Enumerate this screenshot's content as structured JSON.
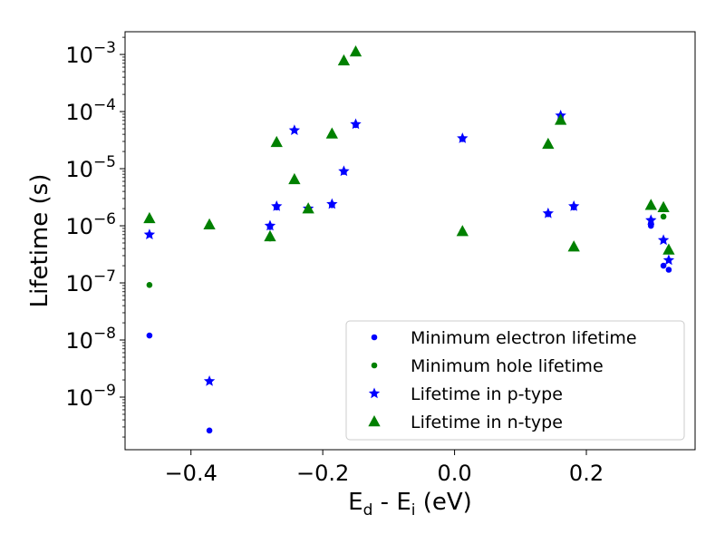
{
  "chart_data": {
    "type": "scatter",
    "title": "",
    "xlabel": {
      "main": "E",
      "sub1": "d",
      "mid": " - E",
      "sub2": "i",
      "tail": " (eV)"
    },
    "ylabel": "Lifetime (s)",
    "yscale": "log",
    "xlim": [
      -0.5,
      0.365
    ],
    "ylim": [
      1.2e-10,
      0.0025
    ],
    "xticks": [
      {
        "value": -0.4,
        "label": "−0.4"
      },
      {
        "value": -0.2,
        "label": "−0.2"
      },
      {
        "value": 0.0,
        "label": "0.0"
      },
      {
        "value": 0.2,
        "label": "0.2"
      }
    ],
    "yticks": [
      {
        "exp": -9,
        "base": "10",
        "sup": "−9"
      },
      {
        "exp": -8,
        "base": "10",
        "sup": "−8"
      },
      {
        "exp": -7,
        "base": "10",
        "sup": "−7"
      },
      {
        "exp": -6,
        "base": "10",
        "sup": "−6"
      },
      {
        "exp": -5,
        "base": "10",
        "sup": "−5"
      },
      {
        "exp": -4,
        "base": "10",
        "sup": "−4"
      },
      {
        "exp": -3,
        "base": "10",
        "sup": "−3"
      }
    ],
    "grid": false,
    "legend_position": "lower-right",
    "series": [
      {
        "name": "Minimum electron lifetime",
        "marker": "circle",
        "color": "#0000ff",
        "points": [
          [
            -0.463,
            1.2e-08
          ],
          [
            -0.372,
            2.6e-10
          ],
          [
            -0.28,
            9.5e-07
          ],
          [
            -0.27,
            2.1e-06
          ],
          [
            -0.243,
            6.2e-06
          ],
          [
            -0.222,
            1.9e-06
          ],
          [
            -0.186,
            2.3e-06
          ],
          [
            -0.168,
            8.8e-06
          ],
          [
            -0.15,
            5.8e-05
          ],
          [
            0.012,
            3.3e-05
          ],
          [
            0.142,
            1.6e-06
          ],
          [
            0.161,
            8.2e-05
          ],
          [
            0.181,
            2.1e-06
          ],
          [
            0.298,
            1e-06
          ],
          [
            0.317,
            2e-07
          ],
          [
            0.325,
            1.7e-07
          ]
        ]
      },
      {
        "name": "Minimum hole lifetime",
        "marker": "circle",
        "color": "#008000",
        "points": [
          [
            -0.463,
            9.2e-08
          ],
          [
            -0.372,
            1.05e-06
          ],
          [
            -0.28,
            6e-07
          ],
          [
            -0.27,
            2.9e-05
          ],
          [
            -0.243,
            6.2e-06
          ],
          [
            -0.222,
            1.9e-06
          ],
          [
            -0.186,
            4e-05
          ],
          [
            -0.168,
            0.00075
          ],
          [
            -0.15,
            0.0011
          ],
          [
            0.012,
            8e-07
          ],
          [
            0.142,
            2.7e-05
          ],
          [
            0.161,
            7e-05
          ],
          [
            0.181,
            4.2e-07
          ],
          [
            0.298,
            2.2e-06
          ],
          [
            0.317,
            1.45e-06
          ],
          [
            0.325,
            3.6e-07
          ]
        ]
      },
      {
        "name": "Lifetime in p-type",
        "marker": "star",
        "color": "#0000ff",
        "points": [
          [
            -0.463,
            7e-07
          ],
          [
            -0.372,
            1.9e-09
          ],
          [
            -0.28,
            1e-06
          ],
          [
            -0.27,
            2.2e-06
          ],
          [
            -0.243,
            4.7e-05
          ],
          [
            -0.222,
            2e-06
          ],
          [
            -0.186,
            2.4e-06
          ],
          [
            -0.168,
            9e-06
          ],
          [
            -0.15,
            6e-05
          ],
          [
            0.012,
            3.4e-05
          ],
          [
            0.142,
            1.65e-06
          ],
          [
            0.161,
            8.5e-05
          ],
          [
            0.181,
            2.2e-06
          ],
          [
            0.298,
            1.25e-06
          ],
          [
            0.317,
            5.6e-07
          ],
          [
            0.325,
            2.5e-07
          ]
        ]
      },
      {
        "name": "Lifetime in n-type",
        "marker": "triangle",
        "color": "#008000",
        "points": [
          [
            -0.463,
            1.35e-06
          ],
          [
            -0.372,
            1.05e-06
          ],
          [
            -0.28,
            6.5e-07
          ],
          [
            -0.27,
            2.9e-05
          ],
          [
            -0.243,
            6.5e-06
          ],
          [
            -0.222,
            2e-06
          ],
          [
            -0.186,
            4.1e-05
          ],
          [
            -0.168,
            0.00078
          ],
          [
            -0.15,
            0.00112
          ],
          [
            0.012,
            8e-07
          ],
          [
            0.142,
            2.7e-05
          ],
          [
            0.161,
            7.1e-05
          ],
          [
            0.181,
            4.3e-07
          ],
          [
            0.298,
            2.3e-06
          ],
          [
            0.317,
            2.1e-06
          ],
          [
            0.325,
            3.8e-07
          ]
        ]
      }
    ]
  }
}
